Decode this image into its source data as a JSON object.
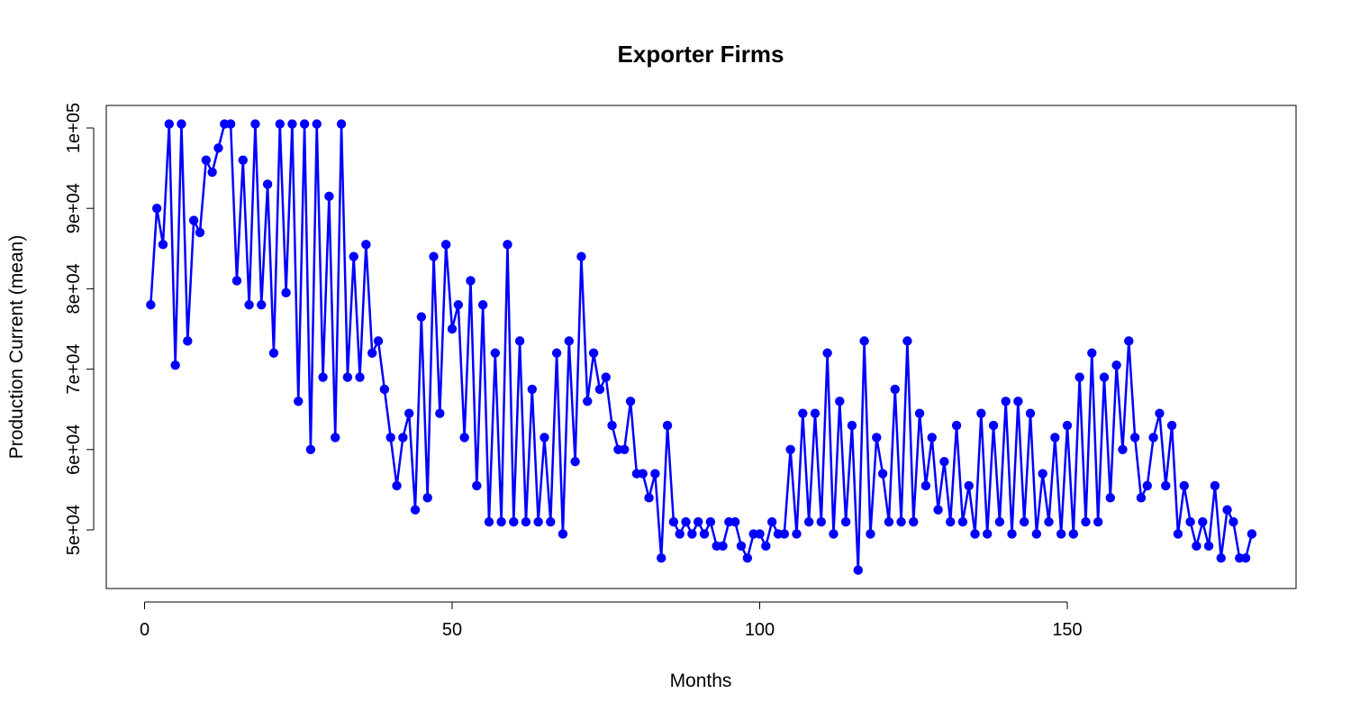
{
  "chart_data": {
    "type": "line",
    "title": "Exporter Firms",
    "xlabel": "Months",
    "ylabel": "Production Current (mean)",
    "xlim": [
      1,
      180
    ],
    "ylim": [
      45000,
      100000
    ],
    "x_ticks": [
      0,
      50,
      100,
      150
    ],
    "x_tick_labels": [
      "0",
      "50",
      "100",
      "150"
    ],
    "y_ticks": [
      50000,
      60000,
      70000,
      80000,
      90000,
      100000
    ],
    "y_tick_labels": [
      "5e+04",
      "6e+04",
      "7e+04",
      "8e+04",
      "9e+04",
      "1e+05"
    ],
    "grid": false,
    "legend": "none",
    "color": "#0000ff",
    "series": [
      {
        "x": [
          1,
          2,
          3,
          4,
          5,
          6,
          7,
          8,
          9,
          10,
          11,
          12,
          13,
          14,
          15,
          16,
          17,
          18,
          19,
          20,
          21,
          22,
          23,
          24,
          25,
          26,
          27,
          28,
          29,
          30,
          31,
          32,
          33,
          34,
          35,
          36,
          37,
          38,
          39,
          40,
          41,
          42,
          43,
          44,
          45,
          46,
          47,
          48,
          49,
          50,
          51,
          52,
          53,
          54,
          55,
          56,
          57,
          58,
          59,
          60,
          61,
          62,
          63,
          64,
          65,
          66,
          67,
          68,
          69,
          70,
          71,
          72,
          73,
          74,
          75,
          76,
          77,
          78,
          79,
          80,
          81,
          82,
          83,
          84,
          85,
          86,
          87,
          88,
          89,
          90,
          91,
          92,
          93,
          94,
          95,
          96,
          97,
          98,
          99,
          100,
          101,
          102,
          103,
          104,
          105,
          106,
          107,
          108,
          109,
          110,
          111,
          112,
          113,
          114,
          115,
          116,
          117,
          118,
          119,
          120,
          121,
          122,
          123,
          124,
          125,
          126,
          127,
          128,
          129,
          130,
          131,
          132,
          133,
          134,
          135,
          136,
          137,
          138,
          139,
          140,
          141,
          142,
          143,
          144,
          145,
          146,
          147,
          148,
          149,
          150,
          151,
          152,
          153,
          154,
          155,
          156,
          157,
          158,
          159,
          160,
          161,
          162,
          163,
          164,
          165,
          166,
          167,
          168,
          169,
          170,
          171,
          172,
          173,
          174,
          175,
          176,
          177,
          178,
          179,
          180
        ],
        "values": [
          78000,
          90000,
          85500,
          100500,
          70500,
          100500,
          73500,
          88500,
          87000,
          96000,
          94500,
          97500,
          100500,
          100500,
          81000,
          96000,
          78000,
          100500,
          78000,
          93000,
          72000,
          100500,
          79500,
          100500,
          66000,
          100500,
          60000,
          100500,
          69000,
          91500,
          61500,
          100500,
          69000,
          84000,
          69000,
          85500,
          72000,
          73500,
          67500,
          61500,
          55500,
          61500,
          64500,
          52500,
          76500,
          54000,
          84000,
          64500,
          85500,
          75000,
          78000,
          61500,
          81000,
          55500,
          78000,
          51000,
          72000,
          51000,
          85500,
          51000,
          73500,
          51000,
          67500,
          51000,
          61500,
          51000,
          72000,
          49500,
          73500,
          58500,
          84000,
          66000,
          72000,
          67500,
          69000,
          63000,
          60000,
          60000,
          66000,
          57000,
          57000,
          54000,
          57000,
          46500,
          63000,
          51000,
          49500,
          51000,
          49500,
          51000,
          49500,
          51000,
          48000,
          48000,
          51000,
          51000,
          48000,
          46500,
          49500,
          49500,
          48000,
          51000,
          49500,
          49500,
          60000,
          49500,
          64500,
          51000,
          64500,
          51000,
          72000,
          49500,
          66000,
          51000,
          63000,
          45000,
          73500,
          49500,
          61500,
          57000,
          51000,
          67500,
          51000,
          73500,
          51000,
          64500,
          55500,
          61500,
          52500,
          58500,
          51000,
          63000,
          51000,
          55500,
          49500,
          64500,
          49500,
          63000,
          51000,
          66000,
          49500,
          66000,
          51000,
          64500,
          49500,
          57000,
          51000,
          61500,
          49500,
          63000,
          49500,
          69000,
          51000,
          72000,
          51000,
          69000,
          54000,
          70500,
          60000,
          73500,
          61500,
          54000,
          55500,
          61500,
          64500,
          55500,
          63000,
          49500,
          55500,
          51000,
          48000,
          51000,
          48000,
          55500,
          46500,
          52500,
          51000,
          46500,
          46500,
          49500
        ]
      }
    ]
  }
}
